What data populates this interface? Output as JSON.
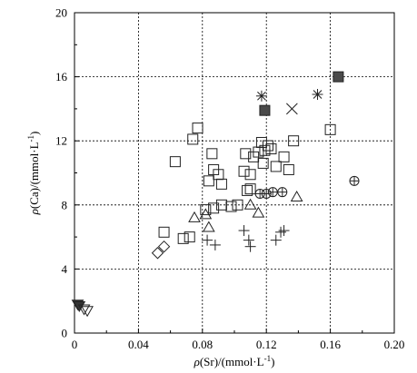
{
  "chart_data": {
    "type": "scatter",
    "xlabel_italic": "ρ",
    "xlabel_rest": "(Sr)/(mmol·L",
    "xlabel_exp": "-1",
    "xlabel_close": ")",
    "ylabel_italic": "ρ",
    "ylabel_rest": "(Ca)/(mmol·L",
    "ylabel_exp": "-1",
    "ylabel_close": ")",
    "xlim": [
      0,
      0.2
    ],
    "ylim": [
      0,
      20
    ],
    "xticks": [
      "0",
      "0.04",
      "0.08",
      "0.12",
      "0.16",
      "0.20"
    ],
    "xtick_values": [
      0,
      0.04,
      0.08,
      0.12,
      0.16,
      0.2
    ],
    "yticks": [
      "0",
      "4",
      "8",
      "12",
      "16",
      "20"
    ],
    "ytick_values": [
      0,
      4,
      8,
      12,
      16,
      20
    ],
    "grid": true,
    "grid_style": "dotted",
    "series": [
      {
        "marker": "open-square",
        "points": [
          [
            0.077,
            12.8
          ],
          [
            0.074,
            12.1
          ],
          [
            0.063,
            10.7
          ],
          [
            0.086,
            11.2
          ],
          [
            0.087,
            10.2
          ],
          [
            0.09,
            9.9
          ],
          [
            0.084,
            9.5
          ],
          [
            0.092,
            9.3
          ],
          [
            0.082,
            7.7
          ],
          [
            0.087,
            7.8
          ],
          [
            0.092,
            8.0
          ],
          [
            0.098,
            7.9
          ],
          [
            0.102,
            8.0
          ],
          [
            0.106,
            10.1
          ],
          [
            0.11,
            9.9
          ],
          [
            0.108,
            8.9
          ],
          [
            0.11,
            9.0
          ],
          [
            0.107,
            11.2
          ],
          [
            0.112,
            11.0
          ],
          [
            0.115,
            11.3
          ],
          [
            0.117,
            11.9
          ],
          [
            0.119,
            11.4
          ],
          [
            0.121,
            11.7
          ],
          [
            0.123,
            11.5
          ],
          [
            0.118,
            10.6
          ],
          [
            0.126,
            10.4
          ],
          [
            0.131,
            11.0
          ],
          [
            0.134,
            10.2
          ],
          [
            0.137,
            12.0
          ],
          [
            0.16,
            12.7
          ],
          [
            0.072,
            6.0
          ],
          [
            0.068,
            5.9
          ],
          [
            0.056,
            6.3
          ]
        ]
      },
      {
        "marker": "filled-square",
        "points": [
          [
            0.119,
            13.9
          ],
          [
            0.165,
            16.0
          ]
        ]
      },
      {
        "marker": "asterisk",
        "points": [
          [
            0.117,
            14.8
          ],
          [
            0.152,
            14.9
          ]
        ]
      },
      {
        "marker": "x-cross",
        "points": [
          [
            0.136,
            14.0
          ]
        ]
      },
      {
        "marker": "open-triangle",
        "points": [
          [
            0.075,
            7.2
          ],
          [
            0.082,
            7.4
          ],
          [
            0.084,
            6.6
          ],
          [
            0.11,
            8.0
          ],
          [
            0.115,
            7.5
          ],
          [
            0.139,
            8.5
          ]
        ]
      },
      {
        "marker": "plus",
        "points": [
          [
            0.083,
            5.8
          ],
          [
            0.088,
            5.5
          ],
          [
            0.106,
            6.4
          ],
          [
            0.109,
            5.8
          ],
          [
            0.11,
            5.4
          ],
          [
            0.126,
            5.8
          ],
          [
            0.129,
            6.3
          ],
          [
            0.131,
            6.4
          ]
        ]
      },
      {
        "marker": "crossed-circle",
        "points": [
          [
            0.116,
            8.7
          ],
          [
            0.12,
            8.7
          ],
          [
            0.124,
            8.8
          ],
          [
            0.13,
            8.8
          ],
          [
            0.175,
            9.5
          ]
        ]
      },
      {
        "marker": "open-diamond",
        "points": [
          [
            0.052,
            5.0
          ],
          [
            0.056,
            5.4
          ]
        ]
      },
      {
        "marker": "filled-triangle-down",
        "points": [
          [
            0.002,
            1.8
          ],
          [
            0.003,
            1.7
          ]
        ]
      },
      {
        "marker": "open-triangle-down",
        "points": [
          [
            0.006,
            1.5
          ],
          [
            0.008,
            1.4
          ]
        ]
      }
    ]
  }
}
